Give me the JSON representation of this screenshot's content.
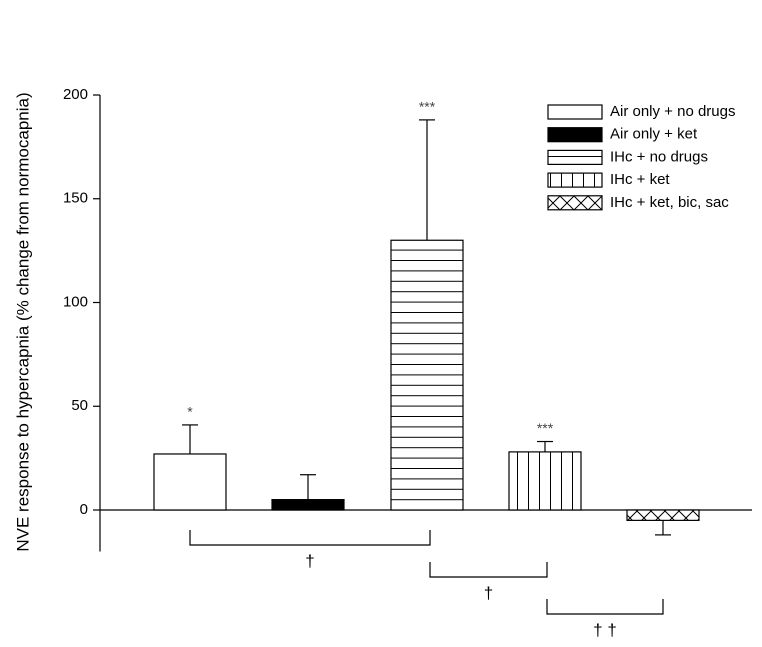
{
  "chart_data": {
    "type": "bar",
    "ylabel": "NVE response to hypercapnia (% change from normocapnia)",
    "ylim": [
      -20,
      200
    ],
    "yticks": [
      0,
      50,
      100,
      150,
      200
    ],
    "legend": "upper right",
    "series": [
      {
        "name": "Air only + no drugs",
        "color": "#ffffff",
        "pattern": "none",
        "values": [
          27
        ],
        "errors": [
          14
        ],
        "annotation": "*"
      },
      {
        "name": "Air only + ket",
        "color": "#000000",
        "pattern": "solid",
        "values": [
          5
        ],
        "errors": [
          12
        ]
      },
      {
        "name": "IHc + no drugs",
        "color": "#ffffff",
        "pattern": "horizontal",
        "values": [
          130
        ],
        "errors": [
          58
        ],
        "annotation": "***"
      },
      {
        "name": "IHc + ket",
        "color": "#ffffff",
        "pattern": "vertical",
        "values": [
          28
        ],
        "errors": [
          5
        ],
        "annotation": "***"
      },
      {
        "name": "IHc + ket, bic, sac",
        "color": "#ffffff",
        "pattern": "crosshatch",
        "values": [
          -5
        ],
        "errors": [
          7
        ]
      }
    ],
    "comparisons": [
      "†",
      "†",
      "† †"
    ]
  }
}
